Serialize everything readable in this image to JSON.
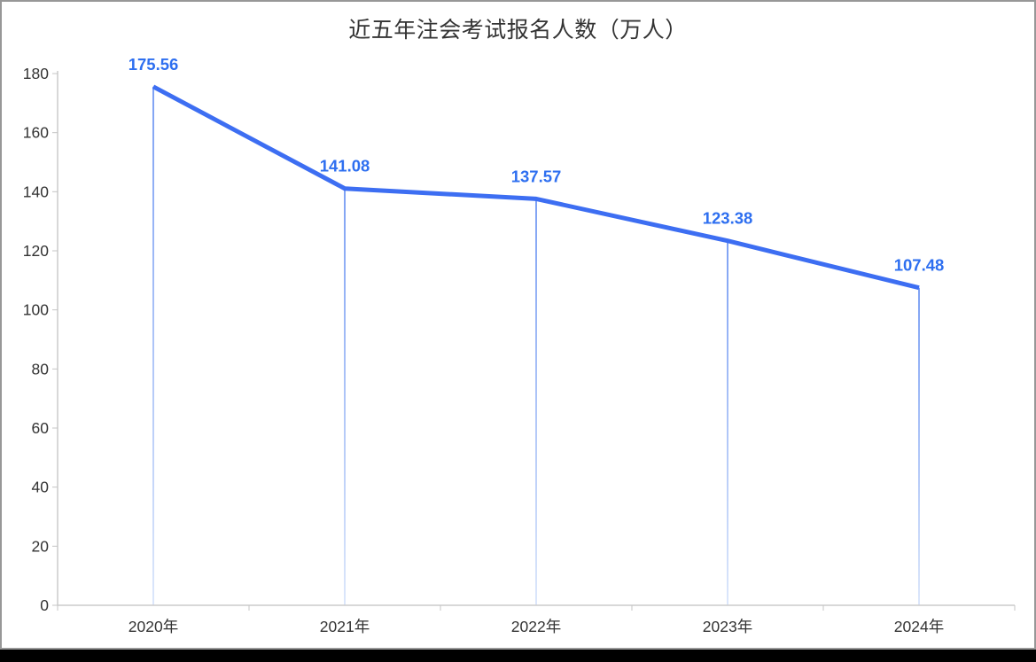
{
  "title": "近五年注会考试报名人数（万人）",
  "chart_data": {
    "type": "line",
    "title": "近五年注会考试报名人数（万人）",
    "categories": [
      "2020年",
      "2021年",
      "2022年",
      "2023年",
      "2024年"
    ],
    "values": [
      175.56,
      141.08,
      137.57,
      123.38,
      107.48
    ],
    "point_labels": [
      "175.56",
      "141.08",
      "137.57",
      "123.38",
      "107.48"
    ],
    "xlabel": "",
    "ylabel": "",
    "ylim": [
      0,
      180
    ],
    "yticks": [
      0,
      20,
      40,
      60,
      80,
      100,
      120,
      140,
      160,
      180
    ],
    "grid": false,
    "legend": "none",
    "series_name": "报名人数"
  },
  "colors": {
    "line": "#3D6EF2",
    "point_label": "#2E6FF0",
    "drop_line_top": "#7FA2F4",
    "drop_line_bottom": "#DCE7FB",
    "axis": "#CCCCCC",
    "tick": "#C4C4C4",
    "axis_text": "#333333",
    "title_text": "#333333",
    "panel_border": "#979797",
    "background": "#FFFFFF",
    "bottom_bar": "#000000"
  }
}
